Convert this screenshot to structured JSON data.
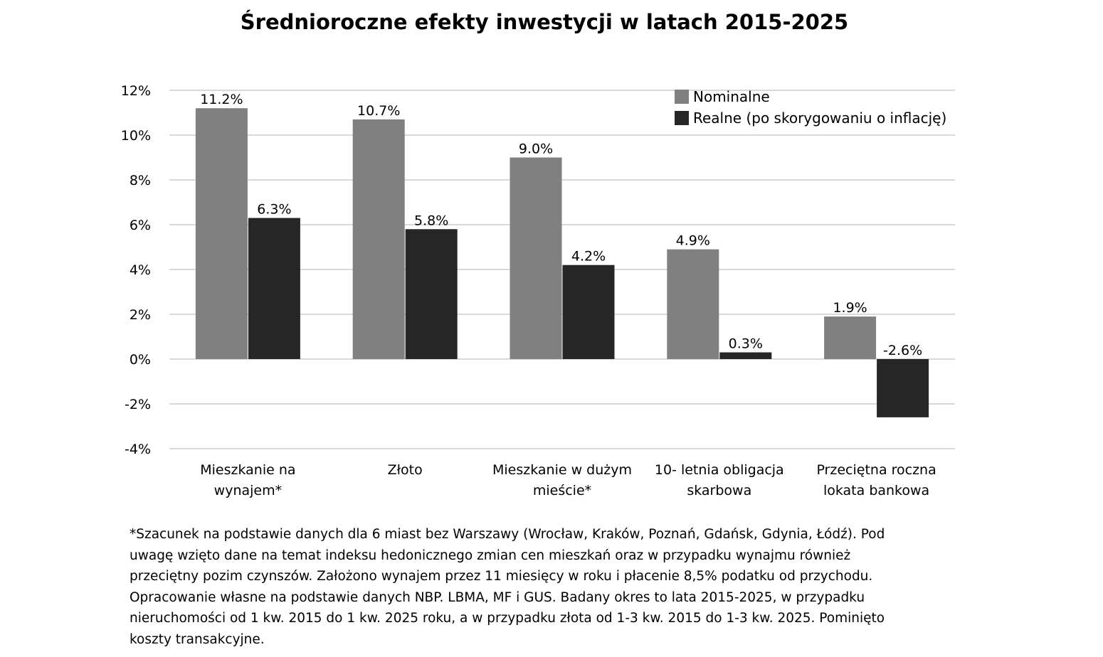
{
  "chart_data": {
    "type": "bar",
    "title": "Średnioroczne efekty inwestycji w latach 2015-2025",
    "categories": [
      [
        "Mieszkanie na",
        "wynajem*"
      ],
      [
        "Złoto"
      ],
      [
        "Mieszkanie w dużym",
        "mieście*"
      ],
      [
        "10- letnia obligacja",
        "skarbowa"
      ],
      [
        "Przeciętna roczna",
        "lokata bankowa"
      ]
    ],
    "series": [
      {
        "name": "Nominalne",
        "color": "#808080",
        "values": [
          11.2,
          10.7,
          9.0,
          4.9,
          1.9
        ],
        "labels": [
          "11.2%",
          "10.7%",
          "9.0%",
          "4.9%",
          "1.9%"
        ]
      },
      {
        "name": "Realne (po skorygowaniu o inflację)",
        "color": "#262626",
        "values": [
          6.3,
          5.8,
          4.2,
          0.3,
          -2.6
        ],
        "labels": [
          "6.3%",
          "5.8%",
          "4.2%",
          "0.3%",
          "-2.6%"
        ]
      }
    ],
    "ylim": [
      -4,
      12
    ],
    "yticks": [
      -4,
      -2,
      0,
      2,
      4,
      6,
      8,
      10,
      12
    ],
    "ytick_labels": [
      "-4%",
      "-2%",
      "0%",
      "2%",
      "4%",
      "6%",
      "8%",
      "10%",
      "12%"
    ],
    "grid": true,
    "legend": "top-right",
    "xlabel": "",
    "ylabel": ""
  },
  "footnote": {
    "lines": [
      "*Szacunek na podstawie danych dla 6 miast bez Warszawy (Wrocław, Kraków, Poznań, Gdańsk, Gdynia, Łódź). Pod",
      "uwagę wzięto dane na temat indeksu hedonicznego zmian cen mieszkań oraz w przypadku wynajmu również",
      "przeciętny pozim czynszów. Założono wynajem przez 11 miesięcy w roku i płacenie 8,5% podatku od przychodu.",
      "Opracowanie własne na podstawie danych NBP. LBMA, MF i GUS. Badany okres to lata 2015-2025, w przypadku",
      "nieruchomości od 1 kw. 2015 do 1 kw. 2025 roku, a w przypadku złota od 1-3 kw. 2015 do 1-3 kw. 2025. Pominięto",
      "koszty transakcyjne."
    ]
  }
}
